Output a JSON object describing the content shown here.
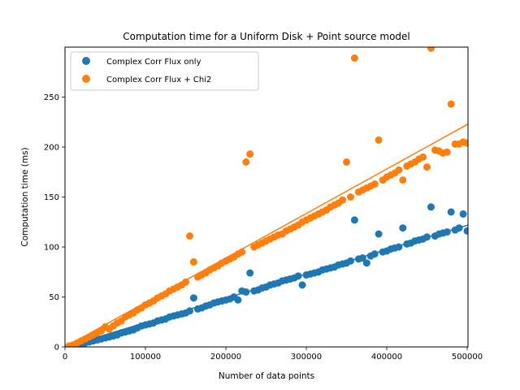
{
  "chart_data": {
    "type": "scatter",
    "title": "Computation time for a Uniform Disk + Point source model",
    "xlabel": "Number of data points",
    "ylabel": "Computation time (ms)",
    "xlim": [
      0,
      501000
    ],
    "ylim": [
      0,
      300
    ],
    "x_ticks": [
      0,
      100000,
      200000,
      300000,
      400000,
      500000
    ],
    "y_ticks": [
      0,
      50,
      100,
      150,
      200,
      250
    ],
    "legend_position": "upper-left",
    "series": [
      {
        "name": "Complex Corr Flux only",
        "color": "#1f77b4",
        "points": [
          [
            5000,
            0
          ],
          [
            10000,
            1
          ],
          [
            15000,
            2
          ],
          [
            20000,
            3
          ],
          [
            25000,
            4
          ],
          [
            30000,
            5
          ],
          [
            35000,
            6
          ],
          [
            40000,
            7
          ],
          [
            45000,
            8
          ],
          [
            50000,
            9
          ],
          [
            55000,
            10
          ],
          [
            60000,
            11
          ],
          [
            65000,
            12
          ],
          [
            70000,
            14
          ],
          [
            75000,
            15
          ],
          [
            80000,
            16
          ],
          [
            85000,
            17
          ],
          [
            90000,
            19
          ],
          [
            95000,
            21
          ],
          [
            100000,
            22
          ],
          [
            105000,
            23
          ],
          [
            110000,
            24
          ],
          [
            115000,
            26
          ],
          [
            120000,
            27
          ],
          [
            125000,
            28
          ],
          [
            130000,
            30
          ],
          [
            135000,
            31
          ],
          [
            140000,
            32
          ],
          [
            145000,
            33
          ],
          [
            150000,
            34
          ],
          [
            155000,
            36
          ],
          [
            160000,
            49
          ],
          [
            165000,
            38
          ],
          [
            170000,
            39
          ],
          [
            175000,
            41
          ],
          [
            180000,
            42
          ],
          [
            185000,
            44
          ],
          [
            190000,
            45
          ],
          [
            195000,
            46
          ],
          [
            200000,
            47
          ],
          [
            205000,
            48
          ],
          [
            210000,
            50
          ],
          [
            215000,
            47
          ],
          [
            220000,
            56
          ],
          [
            225000,
            55
          ],
          [
            230000,
            74
          ],
          [
            235000,
            56
          ],
          [
            240000,
            57
          ],
          [
            245000,
            59
          ],
          [
            250000,
            60
          ],
          [
            255000,
            62
          ],
          [
            260000,
            63
          ],
          [
            265000,
            64
          ],
          [
            270000,
            66
          ],
          [
            275000,
            67
          ],
          [
            280000,
            68
          ],
          [
            285000,
            69
          ],
          [
            290000,
            71
          ],
          [
            295000,
            62
          ],
          [
            300000,
            72
          ],
          [
            305000,
            73
          ],
          [
            310000,
            74
          ],
          [
            315000,
            75
          ],
          [
            320000,
            77
          ],
          [
            325000,
            78
          ],
          [
            330000,
            79
          ],
          [
            335000,
            80
          ],
          [
            340000,
            82
          ],
          [
            345000,
            83
          ],
          [
            350000,
            84
          ],
          [
            355000,
            86
          ],
          [
            360000,
            127
          ],
          [
            365000,
            88
          ],
          [
            370000,
            89
          ],
          [
            375000,
            84
          ],
          [
            380000,
            91
          ],
          [
            385000,
            93
          ],
          [
            390000,
            113
          ],
          [
            395000,
            95
          ],
          [
            400000,
            96
          ],
          [
            405000,
            98
          ],
          [
            410000,
            99
          ],
          [
            415000,
            100
          ],
          [
            420000,
            119
          ],
          [
            425000,
            103
          ],
          [
            430000,
            104
          ],
          [
            435000,
            106
          ],
          [
            440000,
            107
          ],
          [
            445000,
            108
          ],
          [
            450000,
            110
          ],
          [
            455000,
            140
          ],
          [
            460000,
            111
          ],
          [
            465000,
            113
          ],
          [
            470000,
            114
          ],
          [
            475000,
            115
          ],
          [
            480000,
            135
          ],
          [
            485000,
            117
          ],
          [
            490000,
            119
          ],
          [
            495000,
            133
          ],
          [
            500000,
            116
          ]
        ],
        "fit": [
          [
            0,
            0
          ],
          [
            501000,
            122
          ]
        ]
      },
      {
        "name": "Complex Corr Flux + Chi2",
        "color": "#ff7f0e",
        "points": [
          [
            5000,
            1
          ],
          [
            10000,
            2
          ],
          [
            15000,
            4
          ],
          [
            20000,
            6
          ],
          [
            25000,
            8
          ],
          [
            30000,
            10
          ],
          [
            35000,
            12
          ],
          [
            40000,
            14
          ],
          [
            45000,
            16
          ],
          [
            50000,
            20
          ],
          [
            55000,
            18
          ],
          [
            60000,
            21
          ],
          [
            65000,
            24
          ],
          [
            70000,
            26
          ],
          [
            75000,
            30
          ],
          [
            80000,
            32
          ],
          [
            85000,
            34
          ],
          [
            90000,
            37
          ],
          [
            95000,
            39
          ],
          [
            100000,
            42
          ],
          [
            105000,
            44
          ],
          [
            110000,
            46
          ],
          [
            115000,
            49
          ],
          [
            120000,
            51
          ],
          [
            125000,
            53
          ],
          [
            130000,
            56
          ],
          [
            135000,
            58
          ],
          [
            140000,
            60
          ],
          [
            145000,
            62
          ],
          [
            150000,
            65
          ],
          [
            155000,
            111
          ],
          [
            160000,
            85
          ],
          [
            165000,
            70
          ],
          [
            170000,
            72
          ],
          [
            175000,
            74
          ],
          [
            180000,
            77
          ],
          [
            185000,
            79
          ],
          [
            190000,
            81
          ],
          [
            195000,
            84
          ],
          [
            200000,
            86
          ],
          [
            205000,
            88
          ],
          [
            210000,
            90
          ],
          [
            215000,
            93
          ],
          [
            220000,
            95
          ],
          [
            225000,
            185
          ],
          [
            230000,
            193
          ],
          [
            235000,
            100
          ],
          [
            240000,
            102
          ],
          [
            245000,
            104
          ],
          [
            250000,
            106
          ],
          [
            255000,
            108
          ],
          [
            260000,
            110
          ],
          [
            265000,
            112
          ],
          [
            270000,
            113
          ],
          [
            275000,
            116
          ],
          [
            280000,
            118
          ],
          [
            285000,
            120
          ],
          [
            290000,
            122
          ],
          [
            295000,
            125
          ],
          [
            300000,
            127
          ],
          [
            305000,
            129
          ],
          [
            310000,
            131
          ],
          [
            315000,
            133
          ],
          [
            320000,
            135
          ],
          [
            325000,
            137
          ],
          [
            330000,
            140
          ],
          [
            335000,
            142
          ],
          [
            340000,
            144
          ],
          [
            345000,
            147
          ],
          [
            350000,
            185
          ],
          [
            355000,
            150
          ],
          [
            360000,
            289
          ],
          [
            365000,
            155
          ],
          [
            370000,
            157
          ],
          [
            375000,
            159
          ],
          [
            380000,
            161
          ],
          [
            385000,
            163
          ],
          [
            390000,
            207
          ],
          [
            395000,
            167
          ],
          [
            400000,
            170
          ],
          [
            405000,
            172
          ],
          [
            410000,
            174
          ],
          [
            415000,
            177
          ],
          [
            420000,
            167
          ],
          [
            425000,
            181
          ],
          [
            430000,
            183
          ],
          [
            435000,
            185
          ],
          [
            440000,
            188
          ],
          [
            445000,
            190
          ],
          [
            450000,
            180
          ],
          [
            455000,
            299
          ],
          [
            460000,
            197
          ],
          [
            465000,
            196
          ],
          [
            470000,
            194
          ],
          [
            475000,
            195
          ],
          [
            480000,
            243
          ],
          [
            485000,
            203
          ],
          [
            490000,
            203
          ],
          [
            495000,
            205
          ],
          [
            500000,
            204
          ]
        ],
        "fit": [
          [
            0,
            0
          ],
          [
            501000,
            223
          ]
        ]
      }
    ]
  }
}
